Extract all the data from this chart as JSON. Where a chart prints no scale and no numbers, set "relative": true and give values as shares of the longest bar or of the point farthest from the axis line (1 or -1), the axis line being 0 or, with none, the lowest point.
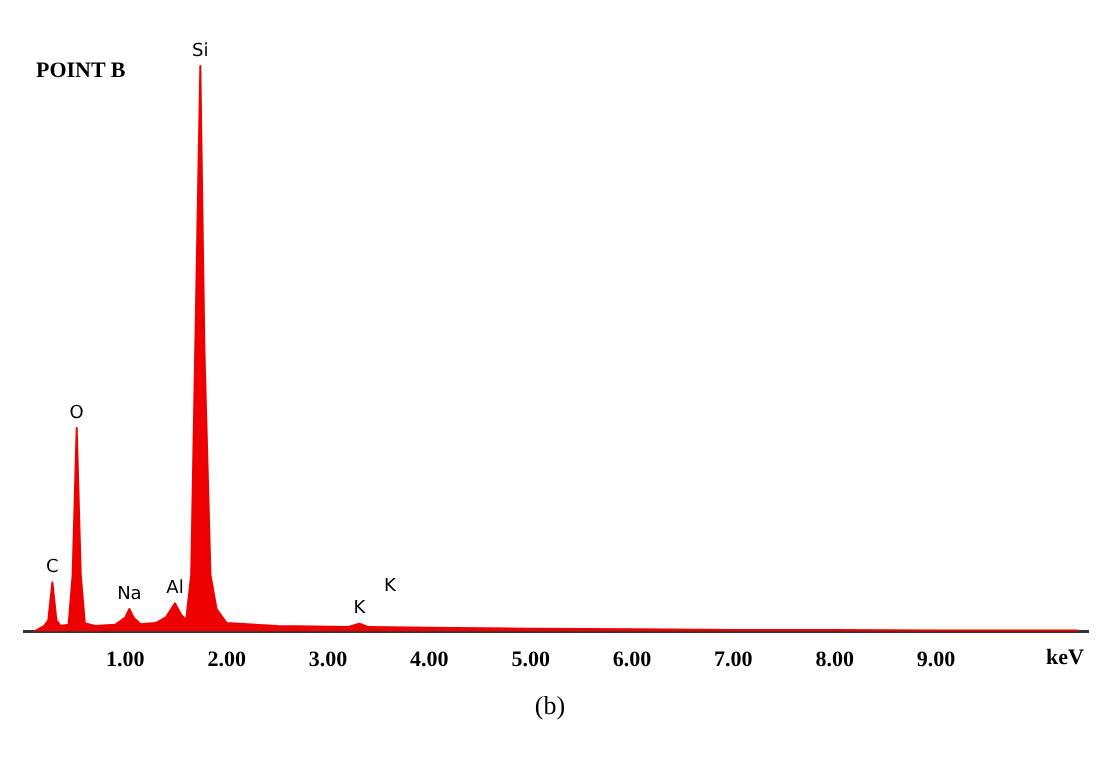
{
  "chart_data": {
    "type": "area",
    "title": "POINT B",
    "xlabel": "keV",
    "relative": true,
    "grid": false,
    "legend": false,
    "marker": "none",
    "x": [
      0.1,
      0.2,
      0.24,
      0.28,
      0.32,
      0.36,
      0.44,
      0.48,
      0.52,
      0.56,
      0.6,
      0.7,
      0.9,
      1.0,
      1.04,
      1.08,
      1.15,
      1.3,
      1.4,
      1.49,
      1.55,
      1.6,
      1.65,
      1.7,
      1.74,
      1.78,
      1.84,
      1.9,
      2.0,
      2.5,
      3.2,
      3.31,
      3.4,
      4,
      5,
      6,
      7,
      8,
      9,
      10.4
    ],
    "series": [
      {
        "color": "#ee0000",
        "values": [
          0,
          0.01,
          0.02,
          0.087,
          0.02,
          0.01,
          0.012,
          0.1,
          0.36,
          0.1,
          0.015,
          0.01,
          0.012,
          0.025,
          0.04,
          0.025,
          0.013,
          0.015,
          0.025,
          0.05,
          0.03,
          0.02,
          0.1,
          0.6,
          1,
          0.5,
          0.1,
          0.04,
          0.015,
          0.01,
          0.008,
          0.014,
          0.008,
          0.007,
          0.005,
          0.004,
          0.003,
          0.003,
          0.002,
          0.002
        ]
      }
    ],
    "xlim": [
      0,
      10.5
    ],
    "xticks": [
      {
        "value": 1,
        "label": "1.00"
      },
      {
        "value": 2,
        "label": "2.00"
      },
      {
        "value": 3,
        "label": "3.00"
      },
      {
        "value": 4,
        "label": "4.00"
      },
      {
        "value": 5,
        "label": "5.00"
      },
      {
        "value": 6,
        "label": "6.00"
      },
      {
        "value": 7,
        "label": "7.00"
      },
      {
        "value": 8,
        "label": "8.00"
      },
      {
        "value": 9,
        "label": "9.00"
      }
    ],
    "annotations": [
      {
        "text": "C",
        "x": 0.28,
        "y": 0.087
      },
      {
        "text": "O",
        "x": 0.52,
        "y": 0.36
      },
      {
        "text": "Na",
        "x": 1.04,
        "y": 0.04
      },
      {
        "text": "Al",
        "x": 1.49,
        "y": 0.05
      },
      {
        "text": "Si",
        "x": 1.74,
        "y": 1
      },
      {
        "text": "K",
        "x": 3.31,
        "y": 0.014
      },
      "K",
      "(b)"
    ]
  }
}
